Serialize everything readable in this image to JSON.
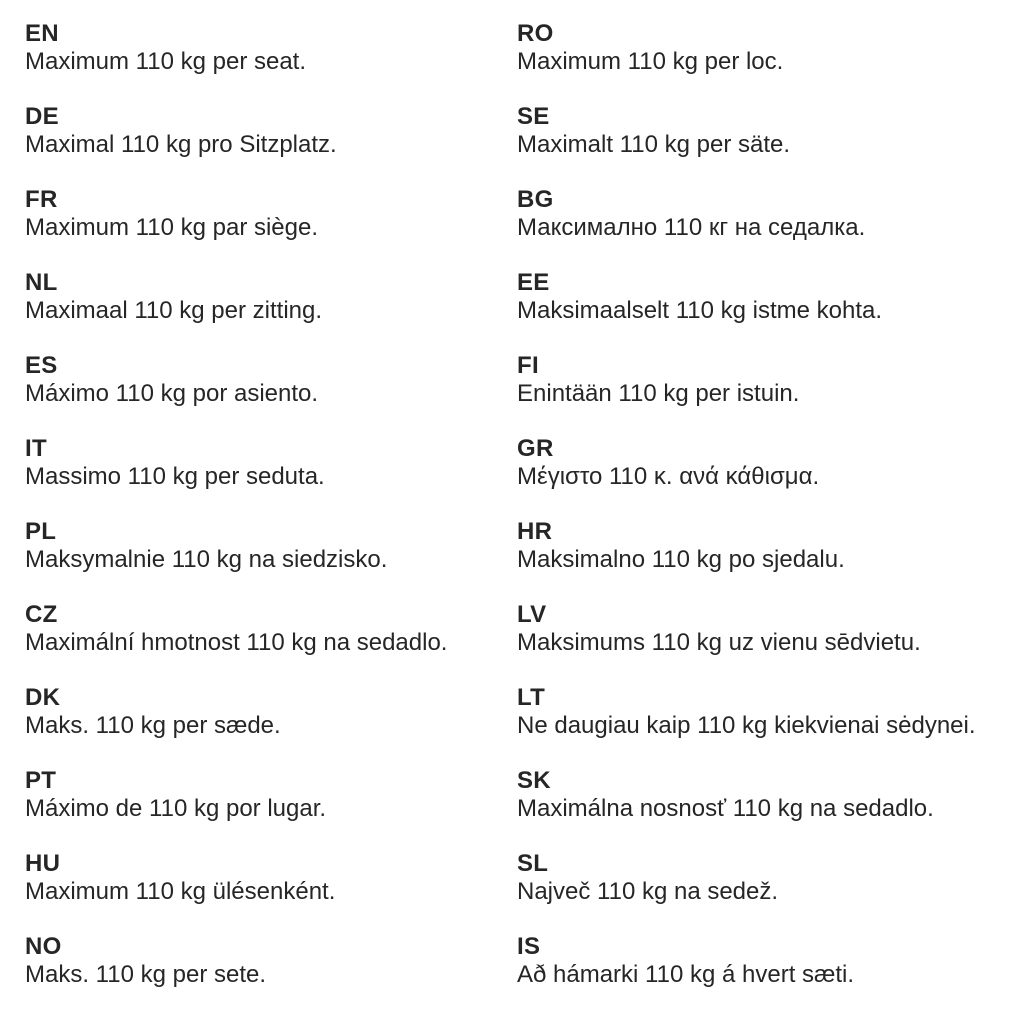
{
  "colors": {
    "text": "#262626",
    "background": "#ffffff"
  },
  "columns": [
    {
      "entries": [
        {
          "code": "EN",
          "text": "Maximum 110 kg per seat."
        },
        {
          "code": "DE",
          "text": "Maximal 110 kg pro Sitzplatz."
        },
        {
          "code": "FR",
          "text": "Maximum 110 kg par siège."
        },
        {
          "code": "NL",
          "text": "Maximaal 110 kg per zitting."
        },
        {
          "code": "ES",
          "text": "Máximo 110 kg por asiento."
        },
        {
          "code": "IT",
          "text": "Massimo 110 kg per seduta."
        },
        {
          "code": "PL",
          "text": "Maksymalnie 110 kg na siedzisko."
        },
        {
          "code": "CZ",
          "text": "Maximální hmotnost 110 kg na sedadlo."
        },
        {
          "code": "DK",
          "text": "Maks. 110 kg per sæde."
        },
        {
          "code": "PT",
          "text": "Máximo de 110 kg por lugar."
        },
        {
          "code": "HU",
          "text": "Maximum 110 kg ülésenként."
        },
        {
          "code": "NO",
          "text": "Maks. 110 kg per sete."
        }
      ]
    },
    {
      "entries": [
        {
          "code": "RO",
          "text": "Maximum 110 kg per loc."
        },
        {
          "code": "SE",
          "text": "Maximalt 110 kg per säte."
        },
        {
          "code": "BG",
          "text": "Максимално 110 кг на седалка."
        },
        {
          "code": "EE",
          "text": "Maksimaalselt 110 kg istme kohta."
        },
        {
          "code": "FI",
          "text": "Enintään 110 kg per istuin."
        },
        {
          "code": "GR",
          "text": "Μέγιστο 110 κ. ανά κάθισμα."
        },
        {
          "code": "HR",
          "text": "Maksimalno 110 kg po sjedalu."
        },
        {
          "code": "LV",
          "text": "Maksimums 110 kg uz vienu sēdvietu."
        },
        {
          "code": "LT",
          "text": "Ne daugiau kaip 110 kg kiekvienai sėdynei."
        },
        {
          "code": "SK",
          "text": "Maximálna nosnosť 110 kg na sedadlo."
        },
        {
          "code": "SL",
          "text": "Največ 110 kg na sedež."
        },
        {
          "code": "IS",
          "text": "Að hámarki 110 kg á hvert sæti."
        }
      ]
    }
  ]
}
